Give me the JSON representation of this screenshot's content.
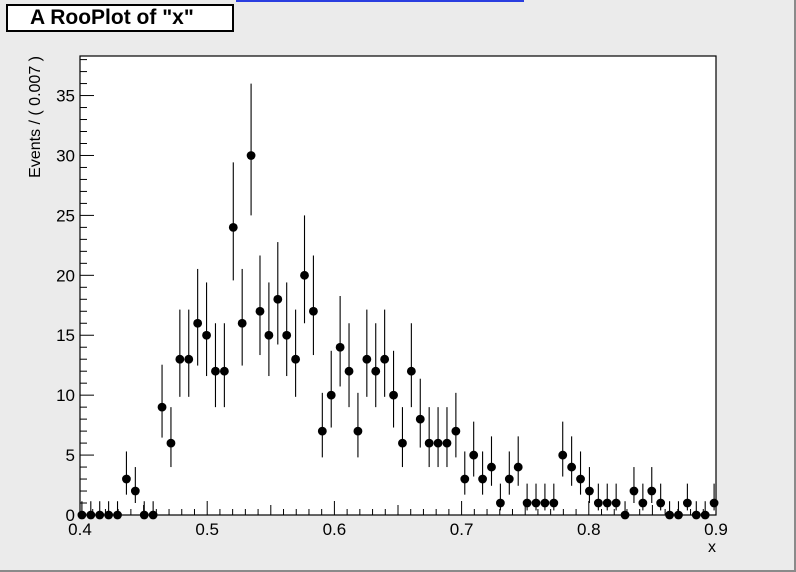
{
  "title": "A RooPlot of \"x\"",
  "colors": {
    "canvas": "#ebebeb",
    "frame": "#ffffff",
    "marker": "#000000",
    "strip": "#2a3ee0"
  },
  "chart_data": {
    "type": "scatter",
    "title": "A RooPlot of \"x\"",
    "xlabel": "x",
    "ylabel": "Events / ( 0.007 )",
    "xlim": [
      0.4,
      0.9
    ],
    "ylim": [
      0,
      38.3
    ],
    "xticks": [
      "0.4",
      "0.5",
      "0.6",
      "0.7",
      "0.8",
      "0.9"
    ],
    "yticks": [
      "0",
      "5",
      "10",
      "15",
      "20",
      "25",
      "30",
      "35"
    ],
    "grid": false,
    "legend": "none",
    "bin_width": 0.007,
    "series": [
      {
        "x": [
          0.4015,
          0.4085,
          0.4155,
          0.4225,
          0.4295,
          0.4365,
          0.4435,
          0.4505,
          0.4575,
          0.4645,
          0.4715,
          0.4785,
          0.4855,
          0.4925,
          0.4995,
          0.5065,
          0.5135,
          0.5205,
          0.5275,
          0.5345,
          0.5415,
          0.5485,
          0.5555,
          0.5625,
          0.5695,
          0.5765,
          0.5835,
          0.5905,
          0.5975,
          0.6045,
          0.6115,
          0.6185,
          0.6255,
          0.6325,
          0.6395,
          0.6465,
          0.6535,
          0.6605,
          0.6675,
          0.6745,
          0.6815,
          0.6885,
          0.6955,
          0.7025,
          0.7095,
          0.7165,
          0.7235,
          0.7305,
          0.7375,
          0.7445,
          0.7515,
          0.7585,
          0.7655,
          0.7725,
          0.7795,
          0.7865,
          0.7935,
          0.8005,
          0.8075,
          0.8145,
          0.8215,
          0.8285,
          0.8355,
          0.8425,
          0.8495,
          0.8565,
          0.8635,
          0.8705,
          0.8775,
          0.8845,
          0.8915,
          0.8985
        ],
        "y": [
          0,
          0,
          0,
          0,
          0,
          3,
          2,
          0,
          0,
          9,
          6,
          13,
          13,
          16,
          15,
          12,
          12,
          24,
          16,
          30,
          17,
          15,
          18,
          15,
          13,
          20,
          17,
          7,
          10,
          14,
          12,
          7,
          13,
          12,
          13,
          10,
          6,
          12,
          8,
          6,
          6,
          6,
          7,
          3,
          5,
          3,
          4,
          1,
          3,
          4,
          1,
          1,
          1,
          1,
          5,
          4,
          3,
          2,
          1,
          1,
          1,
          0,
          2,
          1,
          2,
          1,
          0,
          0,
          1,
          0,
          0,
          1
        ]
      }
    ]
  }
}
